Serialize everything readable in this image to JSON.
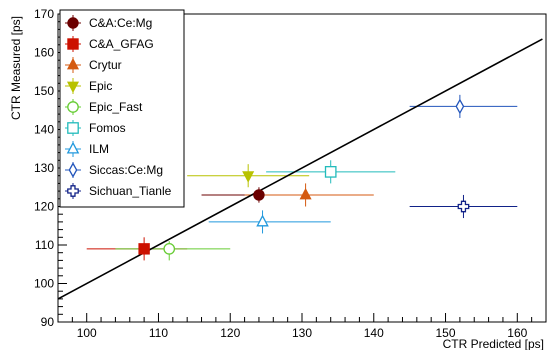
{
  "chart_data": {
    "type": "scatter",
    "title": "",
    "xlabel": "CTR Predicted [ps]",
    "ylabel": "CTR Measured [ps]",
    "xlim": [
      96,
      164
    ],
    "ylim": [
      90,
      170
    ],
    "xticks": [
      100,
      110,
      120,
      130,
      140,
      150,
      160
    ],
    "yticks": [
      90,
      100,
      110,
      120,
      130,
      140,
      150,
      160,
      170
    ],
    "grid": false,
    "legend_position": "top-left",
    "fit_line": {
      "x": [
        96,
        163.5
      ],
      "y": [
        96,
        163.5
      ]
    },
    "series": [
      {
        "name": "C&A:Ce:Mg",
        "color": "#6b0000",
        "marker": "filled-circle",
        "x": 124,
        "y": 123,
        "xerr": [
          116,
          131
        ],
        "yerr": [
          121,
          125
        ]
      },
      {
        "name": "C&A_GFAG",
        "color": "#cc1100",
        "marker": "filled-square",
        "x": 108,
        "y": 109,
        "xerr": [
          100,
          114
        ],
        "yerr": [
          106,
          112
        ]
      },
      {
        "name": "Crytur",
        "color": "#d45a10",
        "marker": "filled-triangle-up",
        "x": 130.5,
        "y": 123,
        "xerr": [
          122,
          140
        ],
        "yerr": [
          120,
          126
        ]
      },
      {
        "name": "Epic",
        "color": "#b8c200",
        "marker": "filled-triangle-down",
        "x": 122.5,
        "y": 128,
        "xerr": [
          114,
          131
        ],
        "yerr": [
          125,
          131
        ]
      },
      {
        "name": "Epic_Fast",
        "color": "#66cc33",
        "marker": "open-circle",
        "x": 111.5,
        "y": 109,
        "xerr": [
          104,
          120
        ],
        "yerr": [
          106,
          111
        ]
      },
      {
        "name": "Fomos",
        "color": "#22bbbb",
        "marker": "open-square",
        "x": 134,
        "y": 129,
        "xerr": [
          125,
          143
        ],
        "yerr": [
          126,
          132
        ]
      },
      {
        "name": "ILM",
        "color": "#2299dd",
        "marker": "open-triangle-up",
        "x": 124.5,
        "y": 116,
        "xerr": [
          117,
          134
        ],
        "yerr": [
          113,
          119
        ]
      },
      {
        "name": "Siccas:Ce:Mg",
        "color": "#2255bb",
        "marker": "open-diamond",
        "x": 152,
        "y": 146,
        "xerr": [
          145,
          160
        ],
        "yerr": [
          143,
          149
        ]
      },
      {
        "name": "Sichuan_Tianle",
        "color": "#112288",
        "marker": "open-cross",
        "x": 152.5,
        "y": 120,
        "xerr": [
          145,
          160
        ],
        "yerr": [
          117,
          123
        ]
      }
    ]
  }
}
